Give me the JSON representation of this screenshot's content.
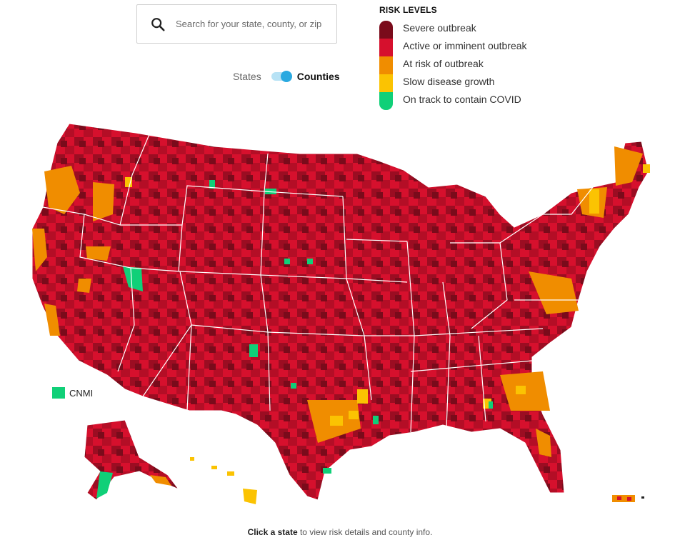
{
  "search": {
    "placeholder": "Search for your state, county, or zip"
  },
  "toggle": {
    "off_label": "States",
    "on_label": "Counties"
  },
  "legend": {
    "title": "RISK LEVELS",
    "items": [
      {
        "label": "Severe outbreak",
        "color": "#7a0b1b"
      },
      {
        "label": "Active or imminent outbreak",
        "color": "#d6102d"
      },
      {
        "label": "At risk of outbreak",
        "color": "#f08d00"
      },
      {
        "label": "Slow disease growth",
        "color": "#fbc302"
      },
      {
        "label": "On track to contain COVID",
        "color": "#10d078"
      }
    ]
  },
  "cnmi": {
    "label": "CNMI",
    "color": "#10d078"
  },
  "footer": {
    "bold": "Click a state",
    "rest": " to view risk details and county info."
  }
}
